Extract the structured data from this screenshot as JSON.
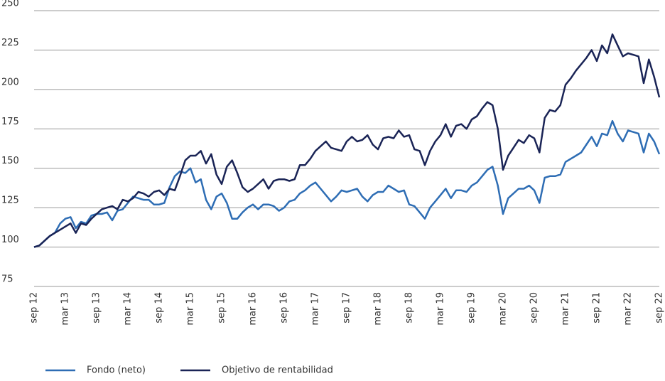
{
  "chart_data": {
    "type": "line",
    "categories": [
      "sep 12",
      null,
      null,
      null,
      null,
      null,
      "mar 13",
      null,
      null,
      null,
      null,
      null,
      "sep 13",
      null,
      null,
      null,
      null,
      null,
      "mar 14",
      null,
      null,
      null,
      null,
      null,
      "sep 14",
      null,
      null,
      null,
      null,
      null,
      "mar 15",
      null,
      null,
      null,
      null,
      null,
      "sep 15",
      null,
      null,
      null,
      null,
      null,
      "mar 16",
      null,
      null,
      null,
      null,
      null,
      "sep 16",
      null,
      null,
      null,
      null,
      null,
      "mar 17",
      null,
      null,
      null,
      null,
      null,
      "sep 17",
      null,
      null,
      null,
      null,
      null,
      "mar 18",
      null,
      null,
      null,
      null,
      null,
      "sep 18",
      null,
      null,
      null,
      null,
      null,
      "mar 19",
      null,
      null,
      null,
      null,
      null,
      "sep 19",
      null,
      null,
      null,
      null,
      null,
      "mar 20",
      null,
      null,
      null,
      null,
      null,
      "sep 20",
      null,
      null,
      null,
      null,
      null,
      "mar 21",
      null,
      null,
      null,
      null,
      null,
      "sep 21",
      null,
      null,
      null,
      null,
      null,
      "mar 22",
      null,
      null,
      null,
      null,
      null,
      "sep 22"
    ],
    "series": [
      {
        "name": "Fondo (neto)",
        "color": "#2e6db4",
        "values": [
          100,
          101,
          104,
          107,
          109,
          115,
          118,
          119,
          112,
          116,
          115,
          120,
          121,
          121,
          122,
          117,
          123,
          124,
          128,
          132,
          131,
          130,
          130,
          127,
          127,
          128,
          138,
          145,
          148,
          147,
          150,
          141,
          143,
          130,
          124,
          132,
          134,
          128,
          118,
          118,
          122,
          125,
          127,
          124,
          127,
          127,
          126,
          123,
          125,
          129,
          130,
          134,
          136,
          139,
          141,
          137,
          133,
          129,
          132,
          136,
          135,
          136,
          137,
          132,
          129,
          133,
          135,
          135,
          139,
          137,
          135,
          136,
          127,
          126,
          122,
          118,
          125,
          129,
          133,
          137,
          131,
          136,
          136,
          135,
          139,
          141,
          145,
          149,
          151,
          139,
          121,
          131,
          134,
          137,
          137,
          139,
          136,
          128,
          144,
          145,
          145,
          146,
          154,
          156,
          158,
          160,
          165,
          170,
          164,
          172,
          171,
          180,
          172,
          167,
          174,
          173,
          172,
          160,
          172,
          167,
          159
        ]
      },
      {
        "name": "Objetivo de rentabilidad",
        "color": "#1a2456",
        "values": [
          100,
          101,
          104,
          107,
          109,
          111,
          113,
          115,
          109,
          115,
          114,
          118,
          121,
          124,
          125,
          126,
          124,
          130,
          129,
          131,
          135,
          134,
          132,
          135,
          136,
          133,
          137,
          136,
          145,
          155,
          158,
          158,
          161,
          153,
          159,
          146,
          140,
          151,
          155,
          147,
          138,
          135,
          137,
          140,
          143,
          137,
          142,
          143,
          143,
          142,
          143,
          152,
          152,
          156,
          161,
          164,
          167,
          163,
          162,
          161,
          167,
          170,
          167,
          168,
          171,
          165,
          162,
          169,
          170,
          169,
          174,
          170,
          171,
          162,
          161,
          152,
          161,
          167,
          171,
          178,
          170,
          177,
          178,
          175,
          181,
          183,
          188,
          192,
          190,
          175,
          149,
          158,
          163,
          168,
          166,
          171,
          169,
          160,
          182,
          187,
          186,
          190,
          203,
          207,
          212,
          216,
          220,
          225,
          218,
          228,
          223,
          235,
          228,
          221,
          223,
          222,
          221,
          204,
          219,
          208,
          195
        ]
      }
    ],
    "ylim": [
      75,
      250
    ],
    "yticks": [
      75,
      100,
      125,
      150,
      175,
      200,
      225,
      250
    ],
    "grid": true
  }
}
